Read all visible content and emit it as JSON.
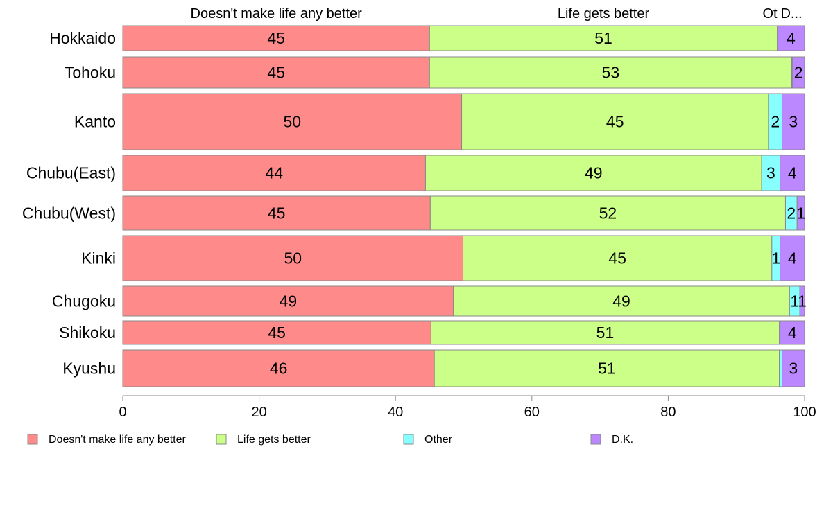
{
  "chart_data": {
    "type": "bar",
    "orientation": "horizontal",
    "stacked": true,
    "categories": [
      "Hokkaido",
      "Tohoku",
      "Kanto",
      "Chubu(East)",
      "Chubu(West)",
      "Kinki",
      "Chugoku",
      "Shikoku",
      "Kyushu"
    ],
    "series": [
      {
        "name": "Doesn't make life any better",
        "color": "#FF8A8A",
        "values": [
          45,
          45,
          49.7,
          44.4,
          45.1,
          49.9,
          48.5,
          45.2,
          45.7
        ],
        "labels": [
          "45",
          "45",
          "50",
          "44",
          "45",
          "50",
          "49",
          "45",
          "46"
        ]
      },
      {
        "name": "Life gets better",
        "color": "#CCFF88",
        "values": [
          51,
          53.1,
          45,
          49.3,
          52.1,
          45.3,
          49.3,
          51.1,
          50.6
        ],
        "labels": [
          "51",
          "53",
          "45",
          "49",
          "52",
          "45",
          "49",
          "51",
          "51"
        ]
      },
      {
        "name": "Other",
        "color": "#88FFFF",
        "values": [
          0,
          0.1,
          2,
          2.7,
          1.7,
          1.2,
          1.5,
          0.1,
          0.4
        ],
        "labels": [
          "",
          "",
          "2",
          "3",
          "2",
          "1",
          "1",
          "",
          ""
        ]
      },
      {
        "name": "D.K.",
        "color": "#BB88FF",
        "values": [
          4,
          1.8,
          3.3,
          3.6,
          1.1,
          3.6,
          0.7,
          3.6,
          3.3
        ],
        "labels": [
          "4",
          "2",
          "3",
          "4",
          "1",
          "4",
          "1",
          "4",
          "3"
        ]
      }
    ],
    "top_labels": [
      "Doesn't make life any better",
      "Life gets better",
      "Ot",
      "D..."
    ],
    "xticks": [
      0,
      20,
      40,
      60,
      80,
      100
    ],
    "xlim": [
      0,
      100
    ],
    "grid": false,
    "legend": "bottom"
  }
}
